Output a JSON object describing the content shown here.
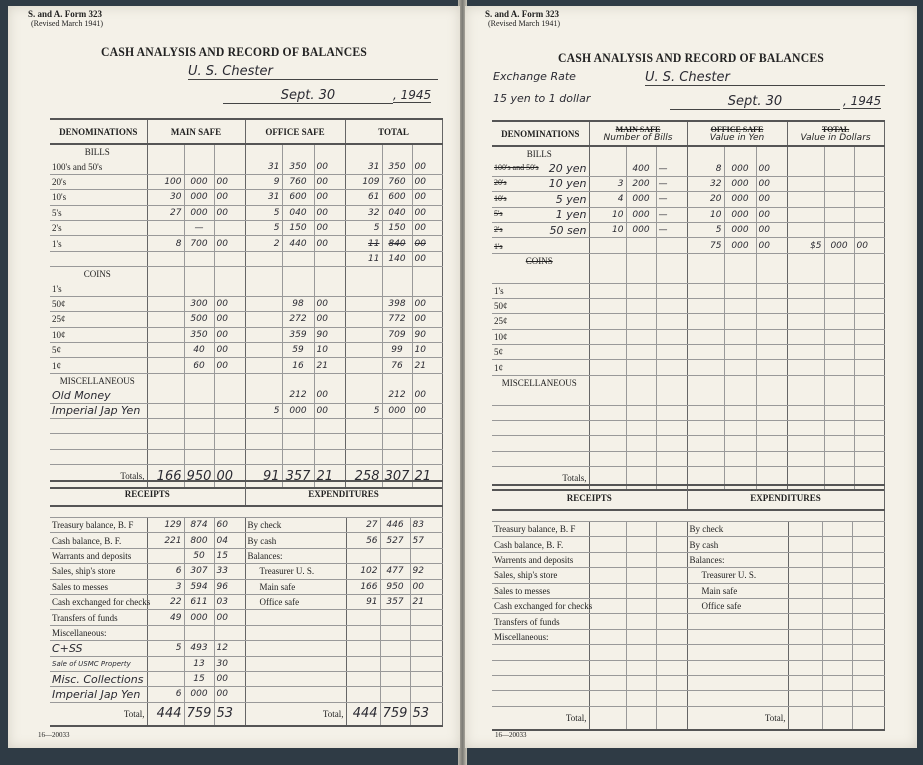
{
  "left": {
    "form_number": "S. and A. Form 323",
    "form_revision": "(Revised March 1941)",
    "title": "CASH ANALYSIS AND RECORD OF BALANCES",
    "ship": "U. S. Chester",
    "date": "Sept. 30",
    "year": ", 1945",
    "headers": {
      "denominations": "DENOMINATIONS",
      "col1": "MAIN SAFE",
      "col2": "OFFICE SAFE",
      "col3": "TOTAL"
    },
    "rows": [
      {
        "section": "BILLS"
      },
      {
        "label": "100's and 50's",
        "c1": [
          "",
          "",
          ""
        ],
        "c2": [
          "31",
          "350",
          "00"
        ],
        "c3": [
          "31",
          "350",
          "00"
        ]
      },
      {
        "label": "20's",
        "c1": [
          "100",
          "000",
          "00"
        ],
        "c2": [
          "9",
          "760",
          "00"
        ],
        "c3": [
          "109",
          "760",
          "00"
        ]
      },
      {
        "label": "10's",
        "c1": [
          "30",
          "000",
          "00"
        ],
        "c2": [
          "31",
          "600",
          "00"
        ],
        "c3": [
          "61",
          "600",
          "00"
        ]
      },
      {
        "label": "5's",
        "c1": [
          "27",
          "000",
          "00"
        ],
        "c2": [
          "5",
          "040",
          "00"
        ],
        "c3": [
          "32",
          "040",
          "00"
        ]
      },
      {
        "label": "2's",
        "c1": [
          "",
          "—",
          ""
        ],
        "c2": [
          "5",
          "150",
          "00"
        ],
        "c3": [
          "5",
          "150",
          "00"
        ]
      },
      {
        "label": "1's",
        "c1": [
          "8",
          "700",
          "00"
        ],
        "c2": [
          "2",
          "440",
          "00"
        ],
        "c3": [
          "11",
          "840",
          "00"
        ],
        "c3_struck": true
      },
      {
        "label": "",
        "c1": [
          "",
          "",
          ""
        ],
        "c2": [
          "",
          "",
          ""
        ],
        "c3": [
          "11",
          "140",
          "00"
        ]
      },
      {
        "section": "COINS"
      },
      {
        "label": "1's",
        "c1": [
          "",
          "",
          ""
        ],
        "c2": [
          "",
          "",
          ""
        ],
        "c3": [
          "",
          "",
          ""
        ]
      },
      {
        "label": "50¢",
        "c1": [
          "",
          "300",
          "00"
        ],
        "c2": [
          "",
          "98",
          "00"
        ],
        "c3": [
          "",
          "398",
          "00"
        ]
      },
      {
        "label": "25¢",
        "c1": [
          "",
          "500",
          "00"
        ],
        "c2": [
          "",
          "272",
          "00"
        ],
        "c3": [
          "",
          "772",
          "00"
        ]
      },
      {
        "label": "10¢",
        "c1": [
          "",
          "350",
          "00"
        ],
        "c2": [
          "",
          "359",
          "90"
        ],
        "c3": [
          "",
          "709",
          "90"
        ]
      },
      {
        "label": "5¢",
        "c1": [
          "",
          "40",
          "00"
        ],
        "c2": [
          "",
          "59",
          "10"
        ],
        "c3": [
          "",
          "99",
          "10"
        ]
      },
      {
        "label": "1¢",
        "c1": [
          "",
          "60",
          "00"
        ],
        "c2": [
          "",
          "16",
          "21"
        ],
        "c3": [
          "",
          "76",
          "21"
        ]
      },
      {
        "section": "MISCELLANEOUS"
      },
      {
        "label": "Old Money",
        "hand": true,
        "c1": [
          "",
          "",
          ""
        ],
        "c2": [
          "",
          "212",
          "00"
        ],
        "c3": [
          "",
          "212",
          "00"
        ]
      },
      {
        "label": "Imperial Jap Yen",
        "hand": true,
        "c1": [
          "",
          "",
          ""
        ],
        "c2": [
          "5",
          "000",
          "00"
        ],
        "c3": [
          "5",
          "000",
          "00"
        ]
      },
      {
        "label": "",
        "c1": [
          "",
          "",
          ""
        ],
        "c2": [
          "",
          "",
          ""
        ],
        "c3": [
          "",
          "",
          ""
        ]
      },
      {
        "label": "",
        "c1": [
          "",
          "",
          ""
        ],
        "c2": [
          "",
          "",
          ""
        ],
        "c3": [
          "",
          "",
          ""
        ]
      },
      {
        "label": "",
        "c1": [
          "",
          "",
          ""
        ],
        "c2": [
          "",
          "",
          ""
        ],
        "c3": [
          "",
          "",
          ""
        ]
      },
      {
        "label": "Totals,",
        "total": true,
        "c1": [
          "166",
          "950",
          "00"
        ],
        "c2": [
          "91",
          "357",
          "21"
        ],
        "c3": [
          "258",
          "307",
          "21"
        ]
      }
    ],
    "receipts_header": "RECEIPTS",
    "expenditures_header": "EXPENDITURES",
    "ledger": [
      {
        "r": "Treasury balance, B. F",
        "rv": [
          "129",
          "874",
          "60"
        ],
        "e": "By check",
        "ev": [
          "27",
          "446",
          "83"
        ]
      },
      {
        "r": "Cash balance, B. F.",
        "rv": [
          "221",
          "800",
          "04"
        ],
        "e": "By cash",
        "ev": [
          "56",
          "527",
          "57"
        ]
      },
      {
        "r": "Warrants and deposits",
        "rv": [
          "",
          "50",
          "15"
        ],
        "e": "Balances:",
        "ev": [
          "",
          "",
          ""
        ]
      },
      {
        "r": "Sales, ship's store",
        "rv": [
          "6",
          "307",
          "33"
        ],
        "e": "Treasurer U. S.",
        "ei": true,
        "ev": [
          "102",
          "477",
          "92"
        ]
      },
      {
        "r": "Sales to messes",
        "rv": [
          "3",
          "594",
          "96"
        ],
        "e": "Main safe",
        "ei": true,
        "ev": [
          "166",
          "950",
          "00"
        ]
      },
      {
        "r": "Cash exchanged for checks",
        "rv": [
          "22",
          "611",
          "03"
        ],
        "e": "Office safe",
        "ei": true,
        "ev": [
          "91",
          "357",
          "21"
        ]
      },
      {
        "r": "Transfers of funds",
        "rv": [
          "49",
          "000",
          "00"
        ],
        "e": "",
        "ev": [
          "",
          "",
          ""
        ]
      },
      {
        "r": "Miscellaneous:",
        "rv": [
          "",
          "",
          ""
        ],
        "e": "",
        "ev": [
          "",
          "",
          ""
        ]
      },
      {
        "r": "C+SS",
        "rh": true,
        "rv": [
          "5",
          "493",
          "12"
        ],
        "e": "",
        "ev": [
          "",
          "",
          ""
        ]
      },
      {
        "r": "Sale of USMC Property",
        "rh": true,
        "rv": [
          "",
          "13",
          "30"
        ],
        "e": "",
        "ev": [
          "",
          "",
          ""
        ]
      },
      {
        "r": "Misc. Collections",
        "rh": true,
        "rv": [
          "",
          "15",
          "00"
        ],
        "e": "",
        "ev": [
          "",
          "",
          ""
        ]
      },
      {
        "r": "Imperial Jap Yen",
        "rh": true,
        "rv": [
          "6",
          "000",
          "00"
        ],
        "e": "",
        "ev": [
          "",
          "",
          ""
        ]
      },
      {
        "r": "Total,",
        "total": true,
        "rv": [
          "444",
          "759",
          "53"
        ],
        "e": "Total,",
        "ev": [
          "444",
          "759",
          "53"
        ]
      }
    ],
    "footer": "16—20033"
  },
  "right": {
    "form_number": "S. and A. Form 323",
    "form_revision": "(Revised March 1941)",
    "title": "CASH ANALYSIS AND RECORD OF BALANCES",
    "exchange_label": "Exchange Rate",
    "exchange_rate": "15 yen to 1 dollar",
    "ship": "U. S. Chester",
    "date": "Sept. 30",
    "year": ", 1945",
    "headers": {
      "denominations": "DENOMINATIONS",
      "col1": "MAIN SAFE",
      "col1_hand": "Number of Bills",
      "col2": "OFFICE SAFE",
      "col2_hand": "Value in Yen",
      "col3": "TOTAL",
      "col3_hand": "Value in Dollars"
    },
    "rows": [
      {
        "section": "BILLS"
      },
      {
        "label": "100's and 50's",
        "struck_label": true,
        "hand_label": "20 yen",
        "c1": [
          "",
          "400",
          "—"
        ],
        "c2": [
          "8",
          "000",
          "00"
        ],
        "c3": [
          "",
          "",
          ""
        ]
      },
      {
        "label": "20's",
        "struck_label": true,
        "hand_label": "10 yen",
        "c1": [
          "3",
          "200",
          "—"
        ],
        "c2": [
          "32",
          "000",
          "00"
        ],
        "c3": [
          "",
          "",
          ""
        ]
      },
      {
        "label": "10's",
        "struck_label": true,
        "hand_label": "5 yen",
        "c1": [
          "4",
          "000",
          "—"
        ],
        "c2": [
          "20",
          "000",
          "00"
        ],
        "c3": [
          "",
          "",
          ""
        ]
      },
      {
        "label": "5's",
        "struck_label": true,
        "hand_label": "1 yen",
        "c1": [
          "10",
          "000",
          "—"
        ],
        "c2": [
          "10",
          "000",
          "00"
        ],
        "c3": [
          "",
          "",
          ""
        ]
      },
      {
        "label": "2's",
        "struck_label": true,
        "hand_label": "50 sen",
        "c1": [
          "10",
          "000",
          "—"
        ],
        "c2": [
          "5",
          "000",
          "00"
        ],
        "c3": [
          "",
          "",
          ""
        ]
      },
      {
        "label": "1's",
        "struck_label": true,
        "c1": [
          "",
          "",
          ""
        ],
        "c2": [
          "75",
          "000",
          "00"
        ],
        "c3": [
          "$5",
          "000",
          "00"
        ]
      },
      {
        "section": "COINS",
        "struck_section": true
      },
      {
        "label": "",
        "c1": [
          "",
          "",
          ""
        ],
        "c2": [
          "",
          "",
          ""
        ],
        "c3": [
          "",
          "",
          ""
        ]
      },
      {
        "label": "1's",
        "c1": [
          "",
          "",
          ""
        ],
        "c2": [
          "",
          "",
          ""
        ],
        "c3": [
          "",
          "",
          ""
        ]
      },
      {
        "label": "50¢",
        "c1": [
          "",
          "",
          ""
        ],
        "c2": [
          "",
          "",
          ""
        ],
        "c3": [
          "",
          "",
          ""
        ]
      },
      {
        "label": "25¢",
        "c1": [
          "",
          "",
          ""
        ],
        "c2": [
          "",
          "",
          ""
        ],
        "c3": [
          "",
          "",
          ""
        ]
      },
      {
        "label": "10¢",
        "c1": [
          "",
          "",
          ""
        ],
        "c2": [
          "",
          "",
          ""
        ],
        "c3": [
          "",
          "",
          ""
        ]
      },
      {
        "label": "5¢",
        "c1": [
          "",
          "",
          ""
        ],
        "c2": [
          "",
          "",
          ""
        ],
        "c3": [
          "",
          "",
          ""
        ]
      },
      {
        "label": "1¢",
        "c1": [
          "",
          "",
          ""
        ],
        "c2": [
          "",
          "",
          ""
        ],
        "c3": [
          "",
          "",
          ""
        ]
      },
      {
        "section": "MISCELLANEOUS"
      },
      {
        "label": "",
        "c1": [
          "",
          "",
          ""
        ],
        "c2": [
          "",
          "",
          ""
        ],
        "c3": [
          "",
          "",
          ""
        ]
      },
      {
        "label": "",
        "c1": [
          "",
          "",
          ""
        ],
        "c2": [
          "",
          "",
          ""
        ],
        "c3": [
          "",
          "",
          ""
        ]
      },
      {
        "label": "",
        "c1": [
          "",
          "",
          ""
        ],
        "c2": [
          "",
          "",
          ""
        ],
        "c3": [
          "",
          "",
          ""
        ]
      },
      {
        "label": "",
        "c1": [
          "",
          "",
          ""
        ],
        "c2": [
          "",
          "",
          ""
        ],
        "c3": [
          "",
          "",
          ""
        ]
      },
      {
        "label": "",
        "c1": [
          "",
          "",
          ""
        ],
        "c2": [
          "",
          "",
          ""
        ],
        "c3": [
          "",
          "",
          ""
        ]
      },
      {
        "label": "Totals,",
        "total": true,
        "c1": [
          "",
          "",
          ""
        ],
        "c2": [
          "",
          "",
          ""
        ],
        "c3": [
          "",
          "",
          ""
        ]
      }
    ],
    "receipts_header": "RECEIPTS",
    "expenditures_header": "EXPENDITURES",
    "ledger": [
      {
        "r": "Treasury balance, B. F",
        "rv": [
          "",
          "",
          ""
        ],
        "e": "By check",
        "ev": [
          "",
          "",
          ""
        ]
      },
      {
        "r": "Cash balance, B. F.",
        "rv": [
          "",
          "",
          ""
        ],
        "e": "By cash",
        "ev": [
          "",
          "",
          ""
        ]
      },
      {
        "r": "Warrents and deposits",
        "rv": [
          "",
          "",
          ""
        ],
        "e": "Balances:",
        "ev": [
          "",
          "",
          ""
        ]
      },
      {
        "r": "Sales, ship's store",
        "rv": [
          "",
          "",
          ""
        ],
        "e": "Treasurer U. S.",
        "ei": true,
        "ev": [
          "",
          "",
          ""
        ]
      },
      {
        "r": "Sales to messes",
        "rv": [
          "",
          "",
          ""
        ],
        "e": "Main safe",
        "ei": true,
        "ev": [
          "",
          "",
          ""
        ]
      },
      {
        "r": "Cash exchanged for checks",
        "rv": [
          "",
          "",
          ""
        ],
        "e": "Office safe",
        "ei": true,
        "ev": [
          "",
          "",
          ""
        ]
      },
      {
        "r": "Transfers of funds",
        "rv": [
          "",
          "",
          ""
        ],
        "e": "",
        "ev": [
          "",
          "",
          ""
        ]
      },
      {
        "r": "Miscellaneous:",
        "rv": [
          "",
          "",
          ""
        ],
        "e": "",
        "ev": [
          "",
          "",
          ""
        ]
      },
      {
        "r": "",
        "rv": [
          "",
          "",
          ""
        ],
        "e": "",
        "ev": [
          "",
          "",
          ""
        ]
      },
      {
        "r": "",
        "rv": [
          "",
          "",
          ""
        ],
        "e": "",
        "ev": [
          "",
          "",
          ""
        ]
      },
      {
        "r": "",
        "rv": [
          "",
          "",
          ""
        ],
        "e": "",
        "ev": [
          "",
          "",
          ""
        ]
      },
      {
        "r": "",
        "rv": [
          "",
          "",
          ""
        ],
        "e": "",
        "ev": [
          "",
          "",
          ""
        ]
      },
      {
        "r": "Total,",
        "total": true,
        "rv": [
          "",
          "",
          ""
        ],
        "e": "Total,",
        "ev": [
          "",
          "",
          ""
        ]
      }
    ],
    "footer": "16—20033"
  }
}
